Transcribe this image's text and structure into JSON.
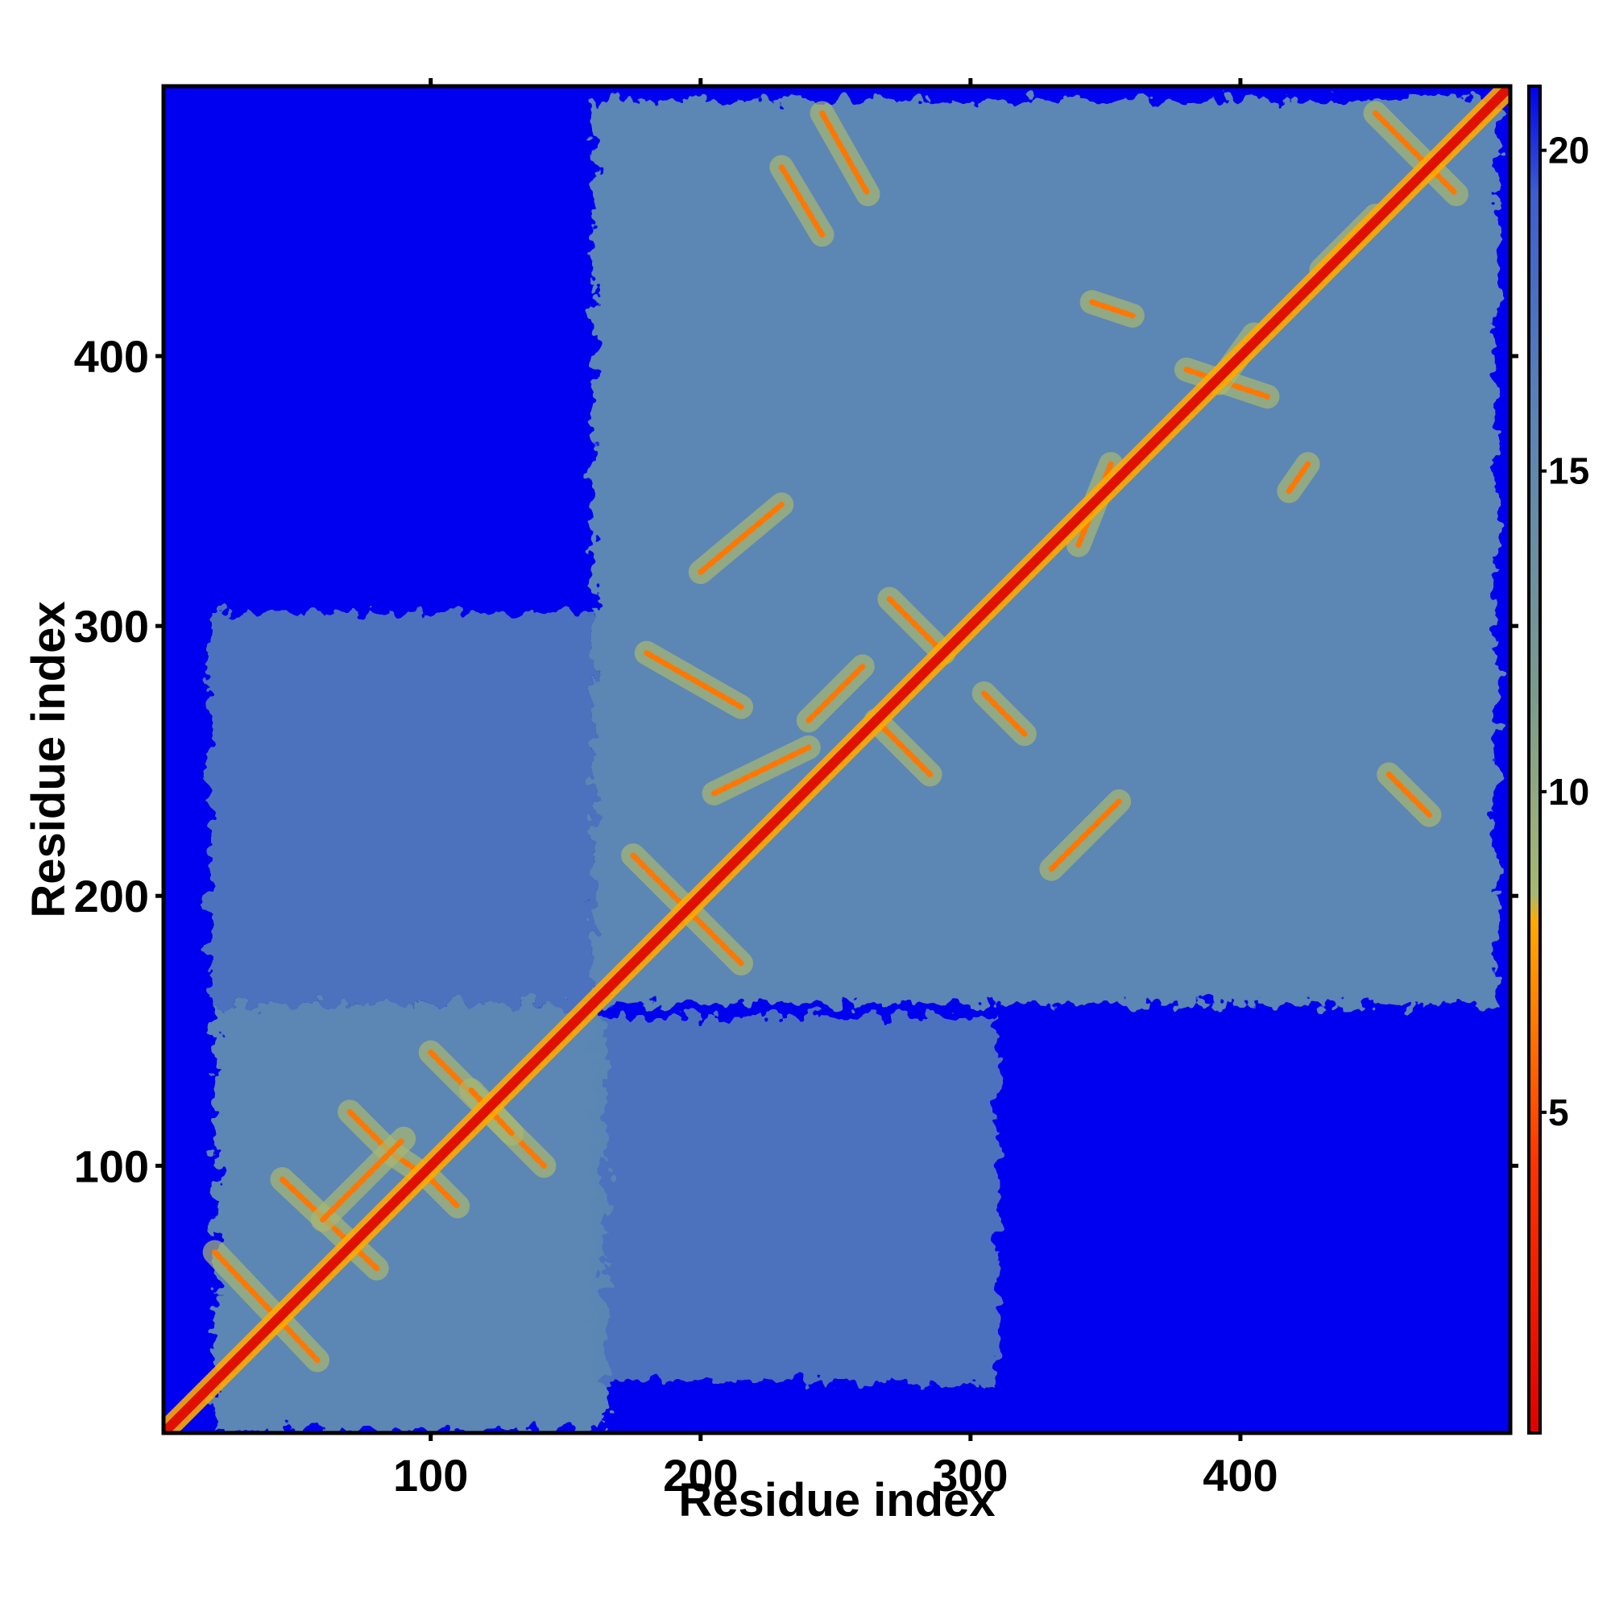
{
  "chart_data": {
    "type": "heatmap",
    "title": "",
    "xlabel": "Residue index",
    "ylabel": "Residue index",
    "xlim": [
      1,
      500
    ],
    "ylim": [
      1,
      500
    ],
    "x_ticks": [
      {
        "value": 100,
        "label": "100"
      },
      {
        "value": 200,
        "label": "200"
      },
      {
        "value": 300,
        "label": "300"
      },
      {
        "value": 400,
        "label": "400"
      }
    ],
    "y_ticks": [
      {
        "value": 100,
        "label": "100"
      },
      {
        "value": 200,
        "label": "200"
      },
      {
        "value": 300,
        "label": "300"
      },
      {
        "value": 400,
        "label": "400"
      }
    ],
    "colorbar": {
      "range": [
        0,
        21
      ],
      "ticks": [
        {
          "value": 5,
          "label": "5"
        },
        {
          "value": 10,
          "label": "10"
        },
        {
          "value": 15,
          "label": "15"
        },
        {
          "value": 20,
          "label": "20"
        }
      ],
      "colors": [
        {
          "from": 0,
          "to": 2.5,
          "color": "#e00000"
        },
        {
          "from": 2.5,
          "to": 5,
          "color": "#ff3300"
        },
        {
          "from": 5,
          "to": 6.5,
          "color": "#ff7700"
        },
        {
          "from": 6.5,
          "to": 8,
          "color": "#ffaa00"
        },
        {
          "from": 8,
          "to": 10.5,
          "color": "#a8b870"
        },
        {
          "from": 10.5,
          "to": 19,
          "color": "#5a85b5"
        },
        {
          "from": 19,
          "to": 21,
          "color": "#0000ee"
        }
      ]
    },
    "background_color": "#0000f0",
    "domain_color": "#5b86b4",
    "domains": [
      {
        "x": [
          20,
          165
        ],
        "y": [
          2,
          160
        ],
        "label": ""
      },
      {
        "x": [
          160,
          495
        ],
        "y": [
          160,
          495
        ],
        "label": ""
      }
    ],
    "inter_domain_patches": [
      {
        "x": [
          18,
          160
        ],
        "y": [
          160,
          305
        ]
      },
      {
        "x": [
          160,
          310
        ],
        "y": [
          20,
          155
        ]
      }
    ],
    "diagonal": {
      "start": 1,
      "end": 500,
      "color": "#e01000"
    },
    "contact_lines": [
      {
        "points": [
          [
            20,
            68
          ],
          [
            58,
            28
          ]
        ]
      },
      {
        "points": [
          [
            45,
            95
          ],
          [
            80,
            62
          ]
        ]
      },
      {
        "points": [
          [
            70,
            120
          ],
          [
            85,
            105
          ],
          [
            100,
            95
          ],
          [
            110,
            85
          ]
        ]
      },
      {
        "points": [
          [
            60,
            80
          ],
          [
            90,
            110
          ]
        ]
      },
      {
        "points": [
          [
            100,
            142
          ],
          [
            142,
            100
          ]
        ]
      },
      {
        "points": [
          [
            115,
            128
          ],
          [
            130,
            112
          ]
        ]
      },
      {
        "points": [
          [
            175,
            215
          ],
          [
            215,
            175
          ]
        ]
      },
      {
        "points": [
          [
            180,
            290
          ],
          [
            215,
            270
          ]
        ]
      },
      {
        "points": [
          [
            200,
            320
          ],
          [
            230,
            345
          ]
        ]
      },
      {
        "points": [
          [
            205,
            238
          ],
          [
            240,
            255
          ]
        ]
      },
      {
        "points": [
          [
            230,
            470
          ],
          [
            245,
            445
          ]
        ]
      },
      {
        "points": [
          [
            240,
            265
          ],
          [
            260,
            285
          ]
        ]
      },
      {
        "points": [
          [
            245,
            490
          ],
          [
            262,
            460
          ]
        ]
      },
      {
        "points": [
          [
            265,
            265
          ],
          [
            285,
            245
          ]
        ]
      },
      {
        "points": [
          [
            270,
            310
          ],
          [
            290,
            290
          ]
        ]
      },
      {
        "points": [
          [
            305,
            275
          ],
          [
            320,
            260
          ]
        ]
      },
      {
        "points": [
          [
            330,
            210
          ],
          [
            355,
            235
          ]
        ]
      },
      {
        "points": [
          [
            340,
            330
          ],
          [
            352,
            360
          ]
        ]
      },
      {
        "points": [
          [
            345,
            420
          ],
          [
            360,
            415
          ]
        ]
      },
      {
        "points": [
          [
            380,
            395
          ],
          [
            410,
            385
          ]
        ]
      },
      {
        "points": [
          [
            392,
            390
          ],
          [
            405,
            408
          ]
        ]
      },
      {
        "points": [
          [
            418,
            350
          ],
          [
            425,
            360
          ]
        ]
      },
      {
        "points": [
          [
            430,
            432
          ],
          [
            450,
            452
          ]
        ]
      },
      {
        "points": [
          [
            450,
            490
          ],
          [
            480,
            460
          ]
        ]
      },
      {
        "points": [
          [
            455,
            245
          ],
          [
            470,
            230
          ]
        ]
      }
    ]
  }
}
